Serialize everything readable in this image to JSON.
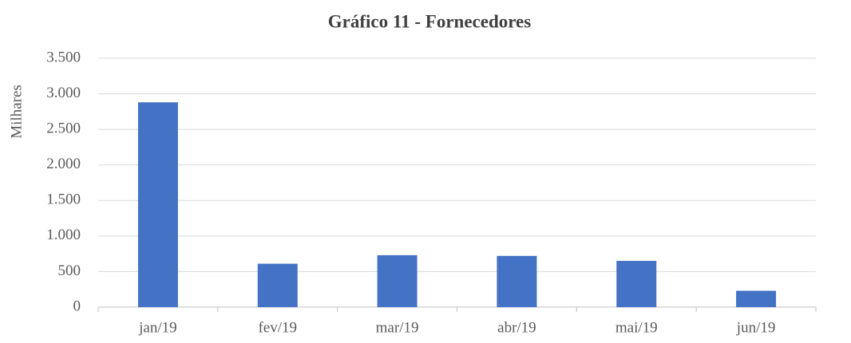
{
  "chart_data": {
    "type": "bar",
    "title": "Gráfico 11 - Fornecedores",
    "y_label": "Milhares",
    "categories": [
      "jan/19",
      "fev/19",
      "mar/19",
      "abr/19",
      "mai/19",
      "jun/19"
    ],
    "values": [
      2880,
      610,
      730,
      720,
      650,
      230
    ],
    "color": "#4472c4",
    "ylim": [
      0,
      3500
    ],
    "yticks": [
      0,
      500,
      {
        "value": 1000,
        "label": "1.000"
      },
      {
        "value": 1500,
        "label": "1.500"
      },
      {
        "value": 2000,
        "label": "2.000"
      },
      {
        "value": 2500,
        "label": "2.500"
      },
      {
        "value": 3000,
        "label": "3.000"
      },
      {
        "value": 3500,
        "label": "3.500"
      }
    ],
    "grid": true
  }
}
